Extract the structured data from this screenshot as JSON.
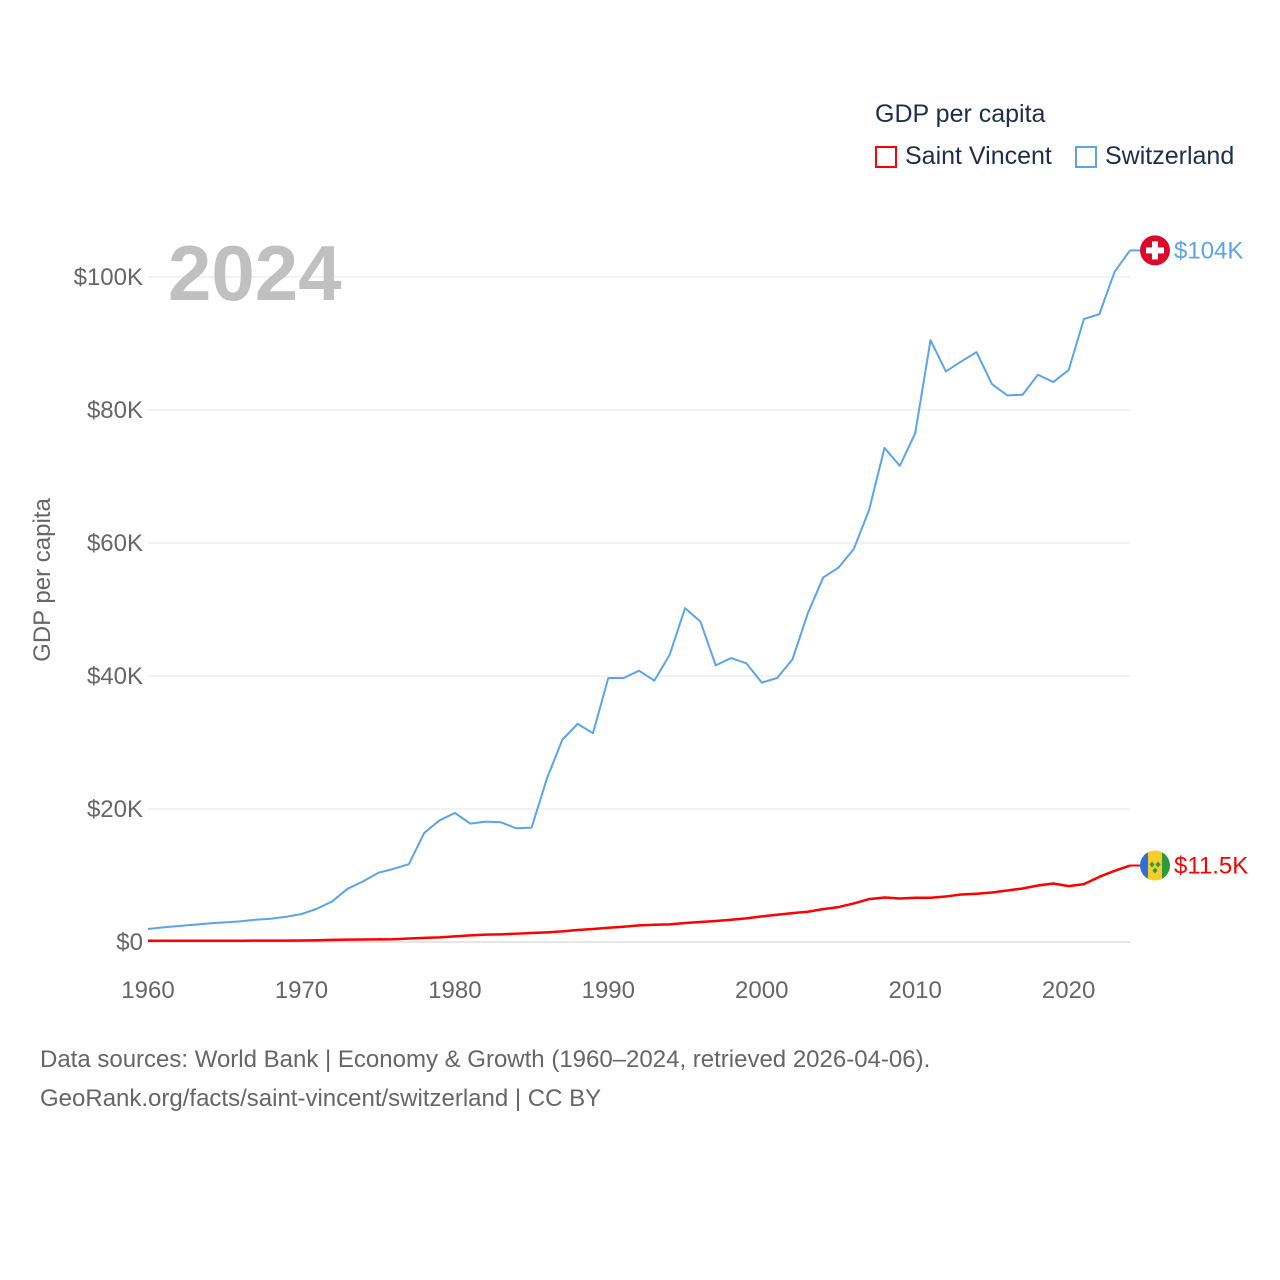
{
  "legend": {
    "title": "GDP per capita",
    "items": [
      {
        "label": "Saint Vincent",
        "color": "#ff0000"
      },
      {
        "label": "Switzerland",
        "color": "#5aa5ea"
      }
    ]
  },
  "year_label": "2024",
  "footer": {
    "line1": "Data sources: World Bank | Economy & Growth (1960–2024, retrieved 2026-04-06).",
    "line2": "GeoRank.org/facts/saint-vincent/switzerland | CC BY"
  },
  "chart_data": {
    "type": "line",
    "title": "GDP per capita",
    "xlabel": "",
    "ylabel": "GDP per capita",
    "xlim": [
      1960,
      2024
    ],
    "ylim": [
      0,
      110000
    ],
    "grid": true,
    "legend_position": "top-right",
    "x_ticks": [
      1960,
      1970,
      1980,
      1990,
      2000,
      2010,
      2020
    ],
    "x_tick_labels": [
      "1960",
      "1970",
      "1980",
      "1990",
      "2000",
      "2010",
      "2020"
    ],
    "y_ticks": [
      0,
      20000,
      40000,
      60000,
      80000,
      100000
    ],
    "y_tick_labels": [
      "$0",
      "$20K",
      "$40K",
      "$60K",
      "$80K",
      "$100K"
    ],
    "x": [
      1960,
      1961,
      1962,
      1963,
      1964,
      1965,
      1966,
      1967,
      1968,
      1969,
      1970,
      1971,
      1972,
      1973,
      1974,
      1975,
      1976,
      1977,
      1978,
      1979,
      1980,
      1981,
      1982,
      1983,
      1984,
      1985,
      1986,
      1987,
      1988,
      1989,
      1990,
      1991,
      1992,
      1993,
      1994,
      1995,
      1996,
      1997,
      1998,
      1999,
      2000,
      2001,
      2002,
      2003,
      2004,
      2005,
      2006,
      2007,
      2008,
      2009,
      2010,
      2011,
      2012,
      2013,
      2014,
      2015,
      2016,
      2017,
      2018,
      2019,
      2020,
      2021,
      2022,
      2023,
      2024
    ],
    "series": [
      {
        "name": "Switzerland",
        "color": "#5aa5ea",
        "end_label": "$104K",
        "flag": "switzerland-flag",
        "values": [
          1950,
          2200,
          2400,
          2600,
          2800,
          2950,
          3100,
          3350,
          3500,
          3800,
          4200,
          5000,
          6100,
          8000,
          9100,
          10400,
          11000,
          11700,
          16400,
          18300,
          19400,
          17800,
          18100,
          18000,
          17100,
          17200,
          24600,
          30400,
          32800,
          31400,
          39700,
          39700,
          40800,
          39300,
          43200,
          50200,
          48200,
          41600,
          42700,
          41900,
          39000,
          39700,
          42500,
          49400,
          54800,
          56300,
          59100,
          65000,
          74300,
          71600,
          76500,
          90500,
          85800,
          87300,
          88700,
          83900,
          82200,
          82300,
          85300,
          84200,
          86000,
          93700,
          94400,
          100800,
          104000
        ]
      },
      {
        "name": "Saint Vincent",
        "color": "#ff0000",
        "end_label": "$11.5K",
        "flag": "saint-vincent-flag",
        "values": [
          180,
          180,
          185,
          180,
          185,
          190,
          195,
          200,
          200,
          210,
          230,
          260,
          320,
          350,
          380,
          400,
          420,
          520,
          620,
          700,
          850,
          1000,
          1100,
          1150,
          1250,
          1350,
          1450,
          1600,
          1800,
          1950,
          2150,
          2300,
          2500,
          2600,
          2650,
          2850,
          3000,
          3150,
          3350,
          3550,
          3850,
          4100,
          4350,
          4550,
          4950,
          5250,
          5800,
          6450,
          6700,
          6550,
          6650,
          6650,
          6850,
          7150,
          7250,
          7450,
          7750,
          8050,
          8500,
          8800,
          8400,
          8700,
          9800,
          10700,
          11500
        ]
      }
    ]
  }
}
